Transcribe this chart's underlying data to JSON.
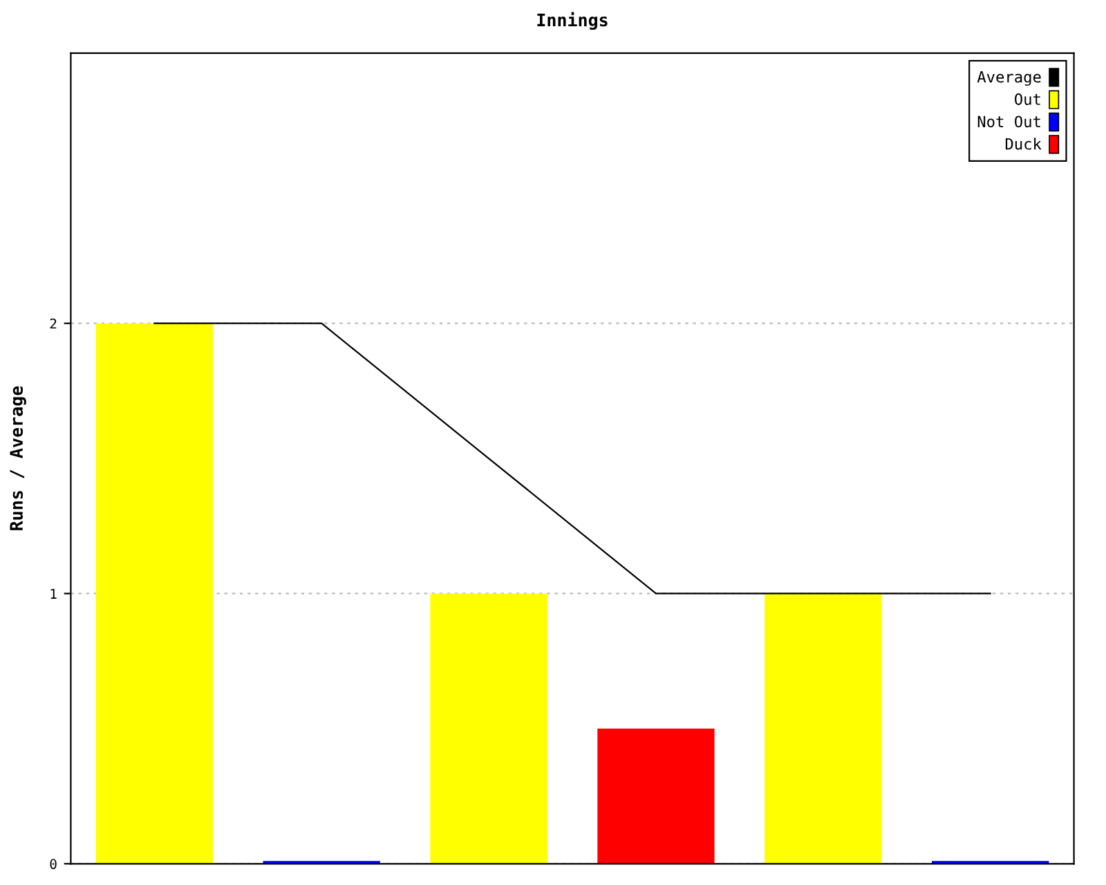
{
  "chart_data": {
    "type": "bar",
    "title": "Innings",
    "ylabel": "Runs / Average",
    "categories": [
      null,
      null,
      null,
      null,
      null,
      null
    ],
    "series": [
      {
        "name": "Average",
        "type": "line",
        "color": "#000000",
        "values": [
          2,
          2,
          1.5,
          1,
          1,
          1
        ]
      },
      {
        "name": "Out",
        "color": "#ffff00",
        "values": [
          2,
          null,
          1,
          null,
          1,
          null
        ]
      },
      {
        "name": "Not Out",
        "color": "#0000ff",
        "values": [
          null,
          0.01,
          null,
          null,
          null,
          0.01
        ]
      },
      {
        "name": "Duck",
        "color": "#ff0000",
        "values": [
          null,
          null,
          null,
          0.5,
          null,
          null
        ]
      }
    ],
    "ylim": [
      0,
      3
    ],
    "yticks": [
      0,
      1,
      2
    ],
    "grid": "y",
    "legend": "top right",
    "marker": "none",
    "line_style": "solid"
  }
}
